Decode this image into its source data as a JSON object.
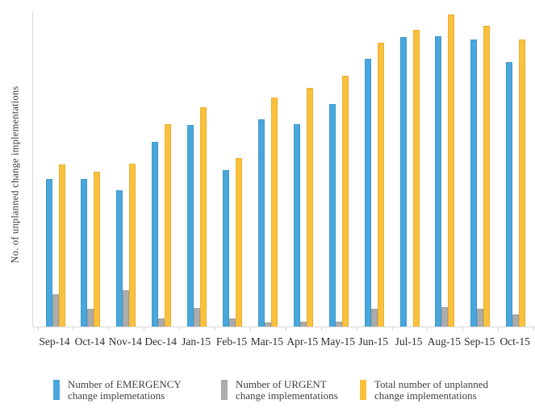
{
  "chart_data": {
    "type": "bar",
    "title": "",
    "xlabel": "",
    "ylabel": "No. of unplanned change implementations",
    "y_axis_tick_labels_visible": false,
    "ylim": [
      0,
      390
    ],
    "grid": false,
    "legend_position": "bottom",
    "axis_color": "#d9d9d9",
    "tick_color": "#d0d0d0",
    "categories": [
      "Sep-14",
      "Oct-14",
      "Nov-14",
      "Dec-14",
      "Jan-15",
      "Feb-15",
      "Mar-15",
      "Apr-15",
      "May-15",
      "Jun-15",
      "Jul-15",
      "Aug-15",
      "Sep-15",
      "Oct-15"
    ],
    "series": [
      {
        "key": "emergency",
        "name": "Number of EMERGENCY change implemetations",
        "legend_lines": [
          "Number of EMERGENCY",
          "change implemetations"
        ],
        "color": "#49a7db",
        "edge_color": "#3e98cd",
        "values": [
          183,
          183,
          169,
          229,
          250,
          194,
          257,
          251,
          276,
          332,
          359,
          360,
          356,
          328
        ]
      },
      {
        "key": "urgent",
        "name": "Number of URGENT change implementations",
        "legend_lines": [
          "Number of URGENT",
          "change implementations"
        ],
        "color": "#acacac",
        "edge_color": "#9c9c9c",
        "values": [
          40,
          22,
          45,
          10,
          23,
          10,
          5,
          6,
          6,
          22,
          0,
          24,
          22,
          15
        ]
      },
      {
        "key": "total",
        "name": "Total number of unplanned change implementations",
        "legend_lines": [
          "Total number of unplanned",
          "change implementations"
        ],
        "color": "#f9c13d",
        "edge_color": "#edaf2d",
        "values": [
          201,
          192,
          202,
          251,
          272,
          209,
          284,
          296,
          311,
          352,
          368,
          387,
          373,
          356
        ]
      }
    ]
  }
}
